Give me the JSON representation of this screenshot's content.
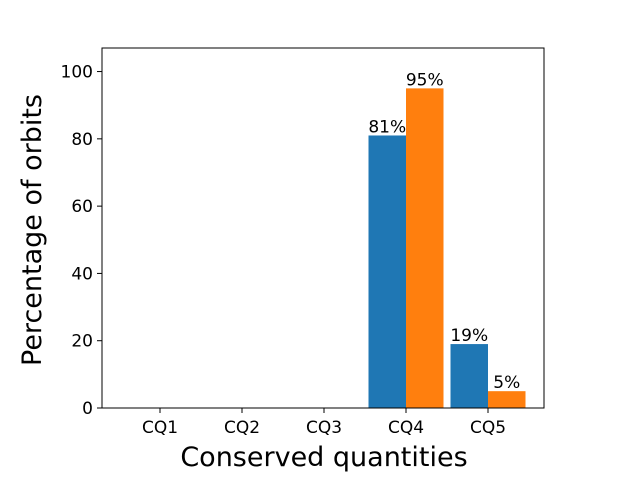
{
  "chart_data": {
    "type": "bar",
    "title": "",
    "xlabel": "Conserved quantities",
    "ylabel": "Percentage of orbits",
    "categories": [
      "CQ1",
      "CQ2",
      "CQ3",
      "CQ4",
      "CQ5"
    ],
    "series": [
      {
        "color": "#1f77b4",
        "values": [
          0,
          0,
          0,
          81,
          19
        ],
        "labels": [
          "",
          "",
          "",
          "81%",
          "19%"
        ]
      },
      {
        "color": "#ff7f0e",
        "values": [
          0,
          0,
          0,
          95,
          5
        ],
        "labels": [
          "",
          "",
          "",
          "95%",
          "5%"
        ]
      }
    ],
    "ylim": [
      0,
      107
    ],
    "yticks": [
      "0",
      "20",
      "40",
      "60",
      "80",
      "100"
    ],
    "grid": false,
    "legend": "none"
  }
}
